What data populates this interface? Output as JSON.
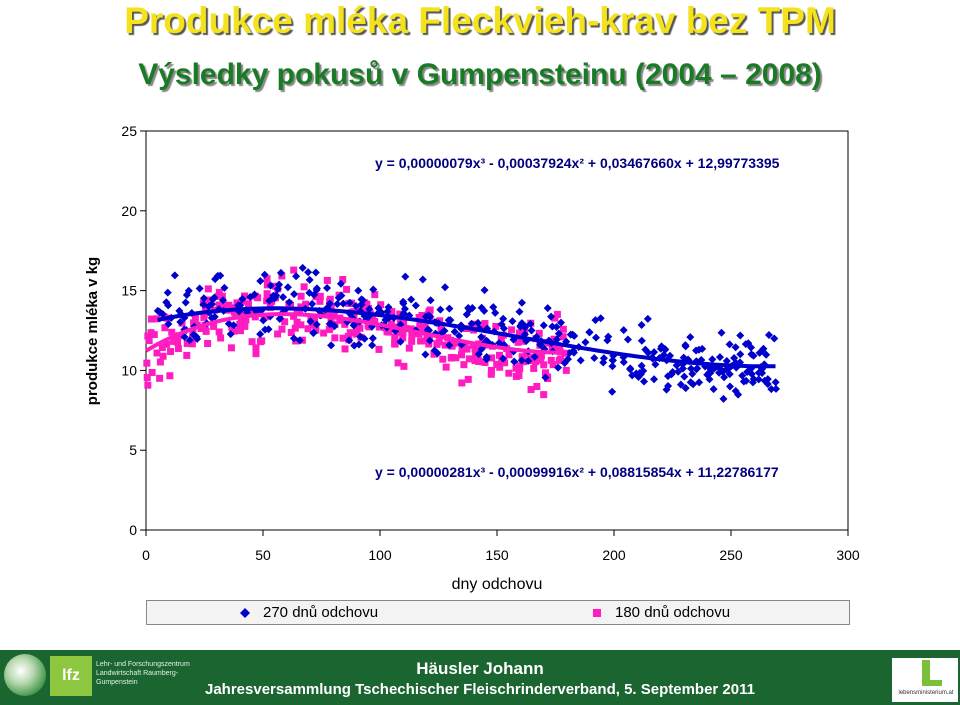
{
  "header": {
    "title": "Produkce mléka Fleckvieh-krav bez TPM",
    "subtitle": "Výsledky pokusů v Gumpensteinu (2004 – 2008)"
  },
  "colors": {
    "series270": "#0000cc",
    "series180": "#ff1cc0",
    "title": "#f3e21c",
    "subtitle": "#1a7a25",
    "footer": "#1a6530"
  },
  "chart_data": {
    "type": "scatter",
    "xlabel": "dny odchovu",
    "ylabel": "produkce mléka v kg",
    "xlim": [
      0,
      300
    ],
    "ylim": [
      0,
      25
    ],
    "xticks": [
      "0",
      "50",
      "100",
      "150",
      "200",
      "250",
      "300"
    ],
    "yticks": [
      "0",
      "5",
      "10",
      "15",
      "20",
      "25"
    ],
    "grid": false,
    "legend_position": "bottom",
    "series": [
      {
        "name": "270 dnů odchovu",
        "marker": "diamond",
        "color": "#0000cc",
        "x_range": [
          5,
          270
        ],
        "n_points": 420,
        "trend": {
          "equation": "y = 0,00000079x³ - 0,00037924x² + 0,03467660x + 12,99773395",
          "coef": [
            7.9e-07,
            -0.00037924,
            0.0346766,
            12.99773395
          ]
        }
      },
      {
        "name": "180 dnů odchovu",
        "marker": "square",
        "color": "#ff1cc0",
        "x_range": [
          0,
          180
        ],
        "n_points": 340,
        "trend": {
          "equation": "y = 0,00000281x³ - 0,00099916x² + 0,08815854x + 11,22786177",
          "coef": [
            2.81e-06,
            -0.00099916,
            0.08815854,
            11.22786177
          ]
        }
      }
    ],
    "equations": [
      "y = 0,00000079x³ - 0,00037924x² + 0,03467660x + 12,99773395",
      "y = 0,00000281x³ - 0,00099916x² + 0,08815854x + 11,22786177"
    ]
  },
  "legend": {
    "item1": "270 dnů odchovu",
    "item2": "180 dnů odchovu"
  },
  "footer": {
    "author": "Häusler Johann",
    "event": "Jahresversammlung Tschechischer Fleischrinderverband, 5. September 2011",
    "lfz_abbrev": "lfz",
    "lfz_name": "Lehr- und Forschungszentrum Landwirtschaft Raumberg-Gumpenstein",
    "right_logo_text": "lebensministerium.at"
  }
}
